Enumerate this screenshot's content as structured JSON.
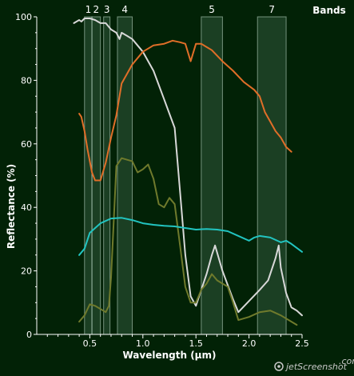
{
  "chart_data": {
    "type": "line",
    "xlabel": "Wavelength (µm)",
    "ylabel": "Reflectance (%)",
    "xlim": [
      0,
      2.5
    ],
    "ylim": [
      0,
      100
    ],
    "x_ticks": [
      "0.5",
      "1.0",
      "1.5",
      "2.0",
      "2.5"
    ],
    "x_tick_values": [
      0.5,
      1.0,
      1.5,
      2.0,
      2.5
    ],
    "y_ticks": [
      "0",
      "20",
      "40",
      "60",
      "80",
      "100"
    ],
    "y_tick_values": [
      0,
      20,
      40,
      60,
      80,
      100
    ],
    "grid": false,
    "bands_label": "Bands",
    "bands": [
      {
        "label": "1",
        "range": [
          0.45,
          0.52
        ]
      },
      {
        "label": "2",
        "range": [
          0.52,
          0.6
        ]
      },
      {
        "label": "3",
        "range": [
          0.63,
          0.69
        ]
      },
      {
        "label": "4",
        "range": [
          0.76,
          0.9
        ]
      },
      {
        "label": "5",
        "range": [
          1.55,
          1.75
        ]
      },
      {
        "label": "7",
        "range": [
          2.08,
          2.35
        ]
      }
    ],
    "series": [
      {
        "color": "#d8d8d8",
        "values": [
          [
            0.35,
            98
          ],
          [
            0.4,
            99
          ],
          [
            0.42,
            98.5
          ],
          [
            0.45,
            99.5
          ],
          [
            0.5,
            99.5
          ],
          [
            0.55,
            99
          ],
          [
            0.6,
            98
          ],
          [
            0.65,
            98
          ],
          [
            0.7,
            96
          ],
          [
            0.75,
            95
          ],
          [
            0.78,
            93
          ],
          [
            0.8,
            95
          ],
          [
            0.85,
            94
          ],
          [
            0.9,
            93
          ],
          [
            1.0,
            89
          ],
          [
            1.1,
            83
          ],
          [
            1.2,
            74
          ],
          [
            1.3,
            65
          ],
          [
            1.35,
            45
          ],
          [
            1.4,
            25
          ],
          [
            1.45,
            12
          ],
          [
            1.5,
            9
          ],
          [
            1.55,
            14
          ],
          [
            1.6,
            19
          ],
          [
            1.65,
            25
          ],
          [
            1.68,
            28
          ],
          [
            1.75,
            20
          ],
          [
            1.85,
            11
          ],
          [
            1.9,
            7
          ],
          [
            2.0,
            10.5
          ],
          [
            2.1,
            14
          ],
          [
            2.18,
            17
          ],
          [
            2.25,
            24
          ],
          [
            2.28,
            28
          ],
          [
            2.3,
            21
          ],
          [
            2.35,
            13
          ],
          [
            2.4,
            8.5
          ],
          [
            2.45,
            7.5
          ],
          [
            2.5,
            6
          ]
        ]
      },
      {
        "color": "#e06e28",
        "values": [
          [
            0.4,
            69.5
          ],
          [
            0.42,
            68.5
          ],
          [
            0.45,
            64
          ],
          [
            0.48,
            58
          ],
          [
            0.52,
            51
          ],
          [
            0.55,
            48.5
          ],
          [
            0.6,
            48.5
          ],
          [
            0.65,
            54
          ],
          [
            0.7,
            62
          ],
          [
            0.75,
            69
          ],
          [
            0.8,
            79
          ],
          [
            0.9,
            85
          ],
          [
            1.0,
            89
          ],
          [
            1.1,
            91
          ],
          [
            1.2,
            91.5
          ],
          [
            1.28,
            92.5
          ],
          [
            1.35,
            92
          ],
          [
            1.4,
            91.5
          ],
          [
            1.45,
            86
          ],
          [
            1.5,
            91.5
          ],
          [
            1.55,
            91.5
          ],
          [
            1.65,
            89.5
          ],
          [
            1.75,
            86
          ],
          [
            1.85,
            83
          ],
          [
            1.95,
            79.5
          ],
          [
            2.05,
            77
          ],
          [
            2.1,
            75
          ],
          [
            2.15,
            70
          ],
          [
            2.2,
            67
          ],
          [
            2.25,
            64
          ],
          [
            2.3,
            62
          ],
          [
            2.35,
            59
          ],
          [
            2.4,
            57.5
          ]
        ]
      },
      {
        "color": "#6f7a2c",
        "values": [
          [
            0.4,
            4
          ],
          [
            0.45,
            6
          ],
          [
            0.5,
            9.5
          ],
          [
            0.55,
            9
          ],
          [
            0.6,
            8
          ],
          [
            0.65,
            7
          ],
          [
            0.68,
            9
          ],
          [
            0.7,
            18
          ],
          [
            0.75,
            53
          ],
          [
            0.8,
            55.5
          ],
          [
            0.9,
            54.5
          ],
          [
            0.95,
            51
          ],
          [
            1.0,
            52
          ],
          [
            1.05,
            53.5
          ],
          [
            1.1,
            49
          ],
          [
            1.15,
            41
          ],
          [
            1.2,
            40
          ],
          [
            1.25,
            43
          ],
          [
            1.3,
            41
          ],
          [
            1.35,
            28
          ],
          [
            1.4,
            15
          ],
          [
            1.45,
            10
          ],
          [
            1.5,
            10
          ],
          [
            1.55,
            14
          ],
          [
            1.6,
            16
          ],
          [
            1.65,
            19
          ],
          [
            1.7,
            17
          ],
          [
            1.75,
            16
          ],
          [
            1.8,
            15
          ],
          [
            1.85,
            10
          ],
          [
            1.9,
            4.5
          ],
          [
            2.0,
            5.5
          ],
          [
            2.1,
            7
          ],
          [
            2.2,
            7.5
          ],
          [
            2.3,
            6
          ],
          [
            2.4,
            4
          ],
          [
            2.45,
            3
          ]
        ]
      },
      {
        "color": "#22c4c0",
        "values": [
          [
            0.4,
            25
          ],
          [
            0.45,
            27
          ],
          [
            0.5,
            32
          ],
          [
            0.6,
            35
          ],
          [
            0.7,
            36.5
          ],
          [
            0.8,
            36.7
          ],
          [
            0.9,
            36
          ],
          [
            1.0,
            35
          ],
          [
            1.1,
            34.5
          ],
          [
            1.2,
            34.2
          ],
          [
            1.3,
            34
          ],
          [
            1.4,
            33.5
          ],
          [
            1.5,
            33
          ],
          [
            1.6,
            33.2
          ],
          [
            1.7,
            33
          ],
          [
            1.8,
            32.5
          ],
          [
            1.9,
            31
          ],
          [
            2.0,
            29.5
          ],
          [
            2.05,
            30.5
          ],
          [
            2.1,
            31
          ],
          [
            2.2,
            30.5
          ],
          [
            2.3,
            29
          ],
          [
            2.35,
            29.5
          ],
          [
            2.4,
            28.5
          ],
          [
            2.5,
            26
          ]
        ]
      }
    ]
  },
  "watermark": "jetScreenshot",
  "watermark_suffix": ".com"
}
